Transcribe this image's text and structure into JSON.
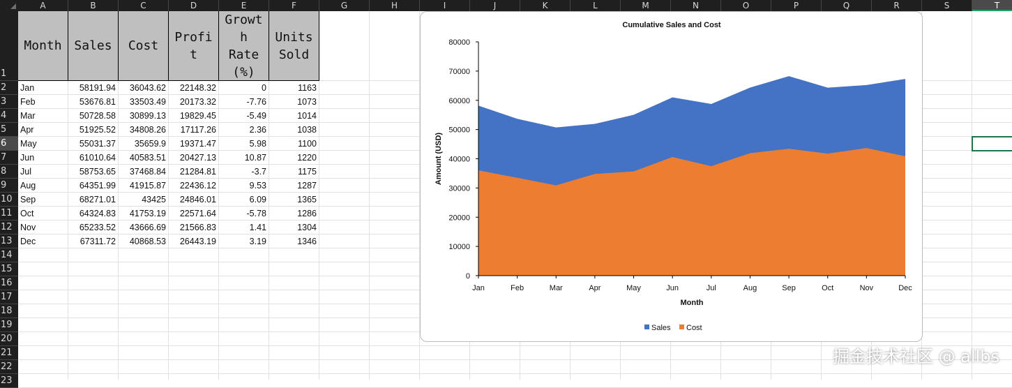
{
  "sheet": {
    "columns": [
      "A",
      "B",
      "C",
      "D",
      "E",
      "F",
      "G",
      "H",
      "I",
      "J",
      "K",
      "L",
      "M",
      "N",
      "O",
      "P",
      "Q",
      "R",
      "S",
      "T"
    ],
    "selected_column": "T",
    "rows": [
      "1",
      "2",
      "3",
      "4",
      "5",
      "6",
      "7",
      "8",
      "9",
      "10",
      "11",
      "12",
      "13",
      "14",
      "15",
      "16",
      "17",
      "18",
      "19",
      "20",
      "21",
      "22",
      "23"
    ],
    "selected_row": "6"
  },
  "table": {
    "headers": [
      "Month",
      "Sales",
      "Cost",
      "Profi\nt",
      "Growt\nh\nRate\n(%)",
      "Units\nSold"
    ],
    "rows": [
      [
        "Jan",
        "58191.94",
        "36043.62",
        "22148.32",
        "0",
        "1163"
      ],
      [
        "Feb",
        "53676.81",
        "33503.49",
        "20173.32",
        "-7.76",
        "1073"
      ],
      [
        "Mar",
        "50728.58",
        "30899.13",
        "19829.45",
        "-5.49",
        "1014"
      ],
      [
        "Apr",
        "51925.52",
        "34808.26",
        "17117.26",
        "2.36",
        "1038"
      ],
      [
        "May",
        "55031.37",
        "35659.9",
        "19371.47",
        "5.98",
        "1100"
      ],
      [
        "Jun",
        "61010.64",
        "40583.51",
        "20427.13",
        "10.87",
        "1220"
      ],
      [
        "Jul",
        "58753.65",
        "37468.84",
        "21284.81",
        "-3.7",
        "1175"
      ],
      [
        "Aug",
        "64351.99",
        "41915.87",
        "22436.12",
        "9.53",
        "1287"
      ],
      [
        "Sep",
        "68271.01",
        "43425",
        "24846.01",
        "6.09",
        "1365"
      ],
      [
        "Oct",
        "64324.83",
        "41753.19",
        "22571.64",
        "-5.78",
        "1286"
      ],
      [
        "Nov",
        "65233.52",
        "43666.69",
        "21566.83",
        "1.41",
        "1304"
      ],
      [
        "Dec",
        "67311.72",
        "40868.53",
        "26443.19",
        "3.19",
        "1346"
      ]
    ]
  },
  "chart_data": {
    "type": "area",
    "title": "Cumulative Sales and Cost",
    "xlabel": "Month",
    "ylabel": "Amount (USD)",
    "categories": [
      "Jan",
      "Feb",
      "Mar",
      "Apr",
      "May",
      "Jun",
      "Jul",
      "Aug",
      "Sep",
      "Oct",
      "Nov",
      "Dec"
    ],
    "series": [
      {
        "name": "Sales",
        "color": "#4472c4",
        "values": [
          58191.94,
          53676.81,
          50728.58,
          51925.52,
          55031.37,
          61010.64,
          58753.65,
          64351.99,
          68271.01,
          64324.83,
          65233.52,
          67311.72
        ]
      },
      {
        "name": "Cost",
        "color": "#ed7d31",
        "values": [
          36043.62,
          33503.49,
          30899.13,
          34808.26,
          35659.9,
          40583.51,
          37468.84,
          41915.87,
          43425,
          41753.19,
          43666.69,
          40868.53
        ]
      }
    ],
    "yticks": [
      "0",
      "10000",
      "20000",
      "30000",
      "40000",
      "50000",
      "60000",
      "70000",
      "80000"
    ],
    "ylim": [
      0,
      80000
    ],
    "legend": "bottom"
  },
  "watermark": "掘金技术社区 @ allbs"
}
